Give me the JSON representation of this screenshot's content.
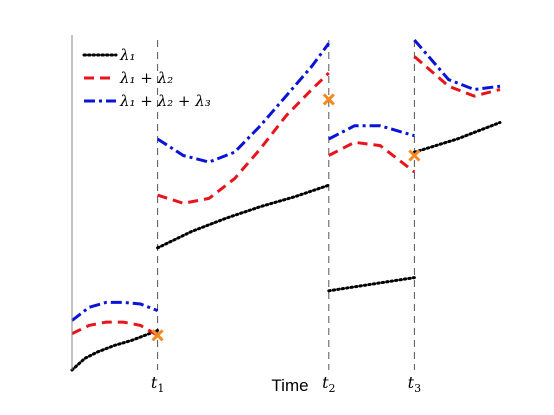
{
  "chart_data": {
    "type": "line",
    "title": "",
    "xlabel": "Time",
    "ylabel": "",
    "xlim": [
      0,
      5
    ],
    "ylim": [
      0,
      10
    ],
    "grid": false,
    "legend_position": "top-left",
    "x_ticks": [
      {
        "value": 1.0,
        "label": "t",
        "sub": "1"
      },
      {
        "value": 3.0,
        "label": "t",
        "sub": "2"
      },
      {
        "value": 4.0,
        "label": "t",
        "sub": "3"
      }
    ],
    "vlines": [
      1.0,
      3.0,
      4.0
    ],
    "series": [
      {
        "name": "λ1",
        "legend_label": "λ₁",
        "color": "#000000",
        "style": "dotted",
        "segments": [
          [
            [
              0,
              0
            ],
            [
              0.15,
              0.35
            ],
            [
              0.3,
              0.55
            ],
            [
              0.5,
              0.75
            ],
            [
              0.7,
              0.9
            ],
            [
              0.85,
              1.05
            ],
            [
              1.0,
              1.2
            ]
          ],
          [
            [
              1.0,
              3.7
            ],
            [
              1.4,
              4.2
            ],
            [
              1.8,
              4.6
            ],
            [
              2.2,
              4.95
            ],
            [
              2.6,
              5.25
            ],
            [
              3.0,
              5.6
            ]
          ],
          [
            [
              3.0,
              2.4
            ],
            [
              3.5,
              2.6
            ],
            [
              4.0,
              2.8
            ]
          ],
          [
            [
              4.0,
              6.6
            ],
            [
              4.5,
              7.0
            ],
            [
              5.0,
              7.5
            ]
          ]
        ]
      },
      {
        "name": "λ1 + λ2",
        "legend_label": "λ₁ + λ₂",
        "color": "#e8141b",
        "style": "dashed",
        "segments": [
          [
            [
              0,
              1.1
            ],
            [
              0.2,
              1.35
            ],
            [
              0.4,
              1.45
            ],
            [
              0.6,
              1.45
            ],
            [
              0.8,
              1.35
            ],
            [
              1.0,
              1.05
            ]
          ],
          [
            [
              1.0,
              5.3
            ],
            [
              1.3,
              5.05
            ],
            [
              1.6,
              5.2
            ],
            [
              1.9,
              5.8
            ],
            [
              2.2,
              6.7
            ],
            [
              2.5,
              7.7
            ],
            [
              2.8,
              8.5
            ],
            [
              3.0,
              9.0
            ]
          ],
          [
            [
              3.0,
              6.5
            ],
            [
              3.3,
              6.9
            ],
            [
              3.6,
              6.8
            ],
            [
              4.0,
              6.0
            ]
          ],
          [
            [
              4.0,
              9.5
            ],
            [
              4.4,
              8.6
            ],
            [
              4.7,
              8.3
            ],
            [
              5.0,
              8.5
            ]
          ]
        ]
      },
      {
        "name": "λ1 + λ2 + λ3",
        "legend_label": "λ₁ + λ₂ + λ₃",
        "color": "#0a14d8",
        "style": "dashdot",
        "segments": [
          [
            [
              0,
              1.5
            ],
            [
              0.2,
              1.9
            ],
            [
              0.4,
              2.05
            ],
            [
              0.6,
              2.05
            ],
            [
              0.8,
              2.0
            ],
            [
              1.0,
              1.8
            ]
          ],
          [
            [
              1.0,
              7.0
            ],
            [
              1.3,
              6.5
            ],
            [
              1.6,
              6.3
            ],
            [
              1.9,
              6.6
            ],
            [
              2.2,
              7.4
            ],
            [
              2.5,
              8.3
            ],
            [
              2.8,
              9.2
            ],
            [
              3.0,
              9.9
            ]
          ],
          [
            [
              3.0,
              7.0
            ],
            [
              3.3,
              7.4
            ],
            [
              3.6,
              7.4
            ],
            [
              4.0,
              7.1
            ]
          ],
          [
            [
              4.0,
              10.0
            ],
            [
              4.4,
              8.8
            ],
            [
              4.7,
              8.5
            ],
            [
              5.0,
              8.6
            ]
          ]
        ]
      }
    ],
    "markers": [
      {
        "x": 1.0,
        "y": 1.05,
        "symbol": "x",
        "color": "#f5891f"
      },
      {
        "x": 3.0,
        "y": 8.2,
        "symbol": "x",
        "color": "#f5891f"
      },
      {
        "x": 4.0,
        "y": 6.5,
        "symbol": "x",
        "color": "#f5891f"
      }
    ]
  }
}
